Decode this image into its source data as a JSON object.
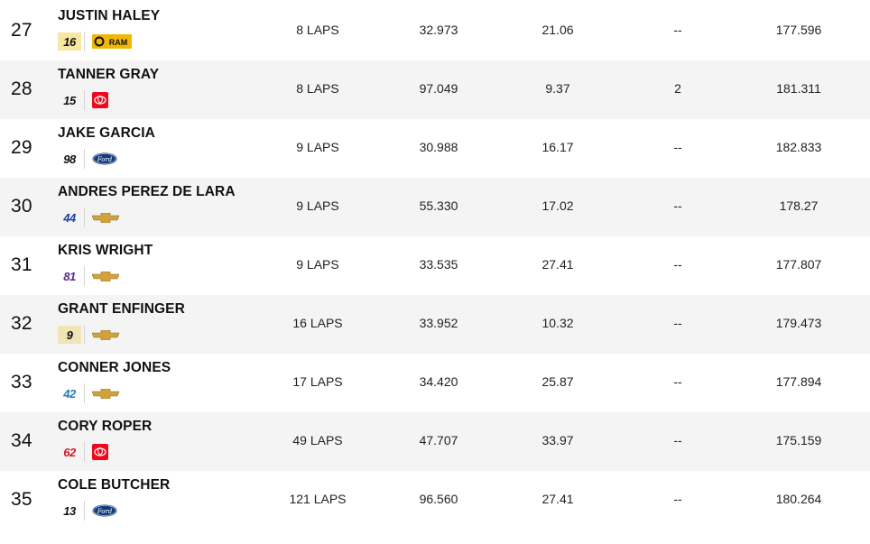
{
  "results": [
    {
      "position": "27",
      "driver": "JUSTIN HALEY",
      "car_number": "16",
      "manufacturer": "ram-logo-icon",
      "laps": "8 LAPS",
      "time": "32.973",
      "diff": "21.06",
      "gain": "--",
      "speed": "177.596"
    },
    {
      "position": "28",
      "driver": "TANNER GRAY",
      "car_number": "15",
      "manufacturer": "toyota-logo-icon",
      "laps": "8 LAPS",
      "time": "97.049",
      "diff": "9.37",
      "gain": "2",
      "speed": "181.311"
    },
    {
      "position": "29",
      "driver": "JAKE GARCIA",
      "car_number": "98",
      "manufacturer": "ford-logo-icon",
      "laps": "9 LAPS",
      "time": "30.988",
      "diff": "16.17",
      "gain": "--",
      "speed": "182.833"
    },
    {
      "position": "30",
      "driver": "ANDRES PEREZ DE LARA",
      "car_number": "44",
      "manufacturer": "chevrolet-logo-icon",
      "laps": "9 LAPS",
      "time": "55.330",
      "diff": "17.02",
      "gain": "--",
      "speed": "178.27"
    },
    {
      "position": "31",
      "driver": "KRIS WRIGHT",
      "car_number": "81",
      "manufacturer": "chevrolet-logo-icon",
      "laps": "9 LAPS",
      "time": "33.535",
      "diff": "27.41",
      "gain": "--",
      "speed": "177.807"
    },
    {
      "position": "32",
      "driver": "GRANT ENFINGER",
      "car_number": "9",
      "manufacturer": "chevrolet-logo-icon",
      "laps": "16 LAPS",
      "time": "33.952",
      "diff": "10.32",
      "gain": "--",
      "speed": "179.473"
    },
    {
      "position": "33",
      "driver": "CONNER JONES",
      "car_number": "42",
      "manufacturer": "chevrolet-logo-icon",
      "laps": "17 LAPS",
      "time": "34.420",
      "diff": "25.87",
      "gain": "--",
      "speed": "177.894"
    },
    {
      "position": "34",
      "driver": "CORY ROPER",
      "car_number": "62",
      "manufacturer": "toyota-logo-icon",
      "laps": "49 LAPS",
      "time": "47.707",
      "diff": "33.97",
      "gain": "--",
      "speed": "175.159"
    },
    {
      "position": "35",
      "driver": "COLE BUTCHER",
      "car_number": "13",
      "manufacturer": "ford-logo-icon",
      "laps": "121 LAPS",
      "time": "96.560",
      "diff": "27.41",
      "gain": "--",
      "speed": "180.264"
    }
  ],
  "logo_text": {
    "ram": "RAM",
    "ford": "Ford"
  },
  "colors": {
    "row_shaded": "#f4f4f4",
    "ram_yellow": "#f2b705",
    "toyota_red": "#eb0a1e",
    "ford_blue": "#133a7c",
    "chevy_gold": "#d2a33c"
  }
}
